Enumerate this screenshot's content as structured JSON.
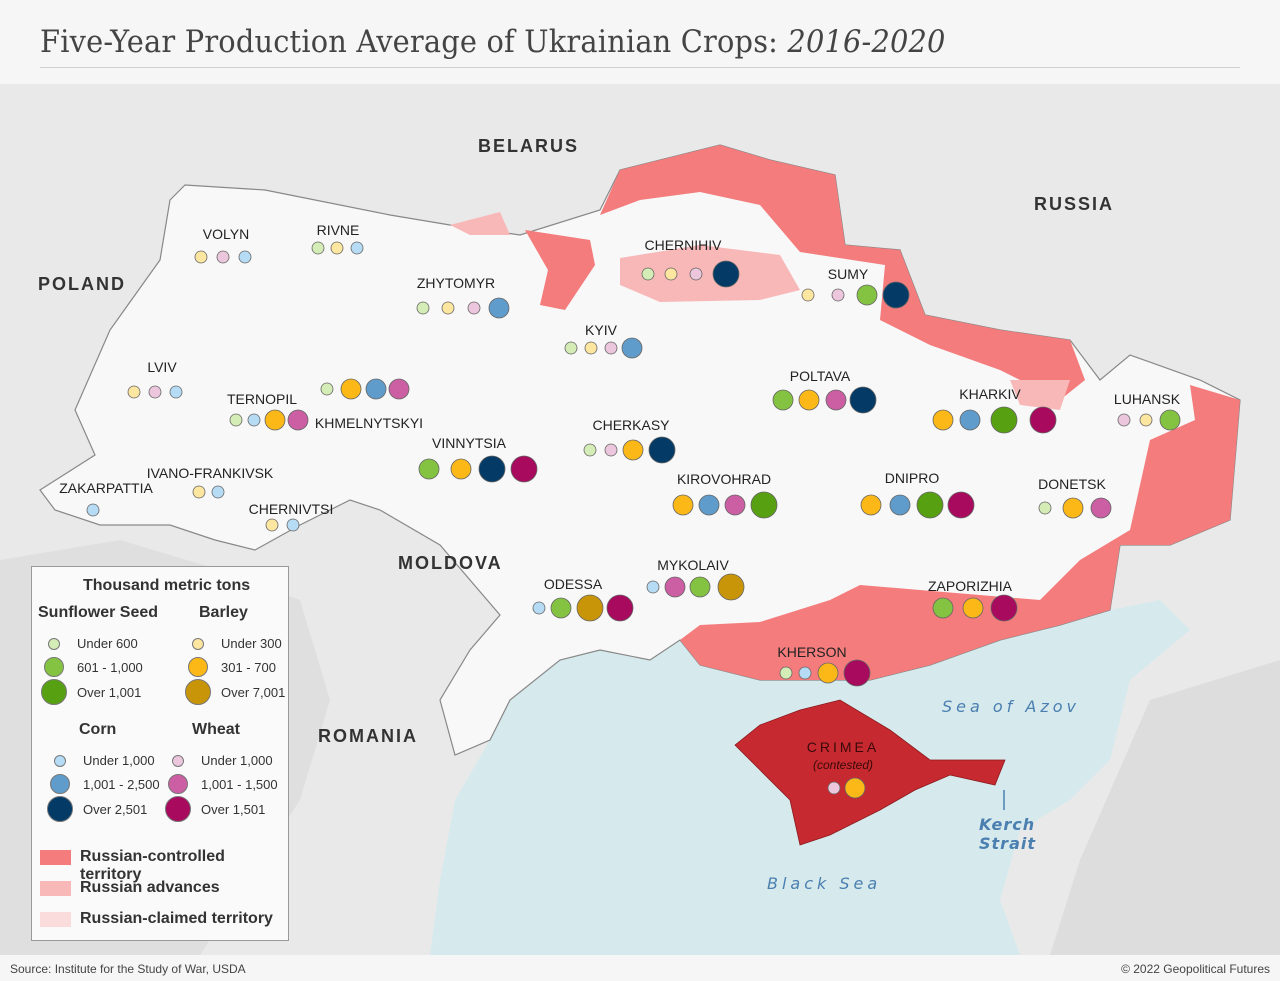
{
  "title": {
    "main": "Five-Year Production Average of Ukrainian Crops: ",
    "years": "2016-2020"
  },
  "countries": [
    "BELARUS",
    "RUSSIA",
    "POLAND",
    "MOLDOVA",
    "ROMANIA"
  ],
  "water": {
    "azov": "Sea of Azov",
    "black_sea": "Black Sea",
    "kerch1": "Kerch",
    "kerch2": "Strait"
  },
  "colors": {
    "controlled": "#f47c7c",
    "advances": "#f8b8b8",
    "claimed": "#fbdcdc",
    "crimea": "#c6292f",
    "sea": "#d6eaed",
    "land": "#f8f8f8",
    "sunflower": [
      "#d4ecb5",
      "#84c341",
      "#57a012"
    ],
    "barley": [
      "#fde6a0",
      "#fbb817",
      "#c99508"
    ],
    "corn": [
      "#b6dcf5",
      "#5f9ccb",
      "#033a66"
    ],
    "wheat": [
      "#ecc6dc",
      "#cc5fa3",
      "#a80a5e"
    ]
  },
  "legend": {
    "title": "Thousand metric tons",
    "crops": {
      "sunflower": {
        "name": "Sunflower Seed",
        "tiers": [
          "Under 600",
          "601 - 1,000",
          "Over 1,001"
        ]
      },
      "barley": {
        "name": "Barley",
        "tiers": [
          "Under 300",
          "301 - 700",
          "Over 7,001"
        ]
      },
      "corn": {
        "name": "Corn",
        "tiers": [
          "Under 1,000",
          "1,001 - 2,500",
          "Over 2,501"
        ]
      },
      "wheat": {
        "name": "Wheat",
        "tiers": [
          "Under 1,000",
          "1,001 - 1,500",
          "Over 1,501"
        ]
      }
    },
    "territory": [
      "Russian-controlled territory",
      "Russian advances",
      "Russian-claimed territory"
    ]
  },
  "regions": [
    {
      "name": "VOLYN",
      "crops": [
        [
          "barley",
          0
        ],
        [
          "wheat",
          0
        ],
        [
          "corn",
          0
        ]
      ]
    },
    {
      "name": "RIVNE",
      "crops": [
        [
          "sunflower",
          0
        ],
        [
          "barley",
          0
        ],
        [
          "corn",
          0
        ]
      ]
    },
    {
      "name": "ZHYTOMYR",
      "crops": [
        [
          "sunflower",
          0
        ],
        [
          "barley",
          0
        ],
        [
          "wheat",
          0
        ],
        [
          "corn",
          1
        ]
      ]
    },
    {
      "name": "LVIV",
      "crops": [
        [
          "barley",
          0
        ],
        [
          "wheat",
          0
        ],
        [
          "corn",
          0
        ]
      ]
    },
    {
      "name": "TERNOPIL",
      "crops": [
        [
          "sunflower",
          0
        ],
        [
          "corn",
          0
        ],
        [
          "barley",
          1
        ],
        [
          "wheat",
          1
        ]
      ]
    },
    {
      "name": "KHMELNYTSKYI",
      "crops": [
        [
          "sunflower",
          0
        ],
        [
          "barley",
          1
        ],
        [
          "corn",
          1
        ],
        [
          "wheat",
          1
        ]
      ]
    },
    {
      "name": "IVANO-FRANKIVSK",
      "crops": [
        [
          "barley",
          0
        ],
        [
          "corn",
          0
        ]
      ]
    },
    {
      "name": "ZAKARPATTIA",
      "crops": [
        [
          "corn",
          0
        ]
      ]
    },
    {
      "name": "CHERNIVTSI",
      "crops": [
        [
          "barley",
          0
        ],
        [
          "corn",
          0
        ]
      ]
    },
    {
      "name": "VINNYTSIA",
      "crops": [
        [
          "sunflower",
          1
        ],
        [
          "barley",
          1
        ],
        [
          "corn",
          2
        ],
        [
          "wheat",
          2
        ]
      ]
    },
    {
      "name": "KYIV",
      "crops": [
        [
          "sunflower",
          0
        ],
        [
          "barley",
          0
        ],
        [
          "wheat",
          0
        ],
        [
          "corn",
          1
        ]
      ]
    },
    {
      "name": "CHERNIHIV",
      "crops": [
        [
          "sunflower",
          0
        ],
        [
          "barley",
          0
        ],
        [
          "wheat",
          0
        ],
        [
          "corn",
          2
        ]
      ]
    },
    {
      "name": "SUMY",
      "crops": [
        [
          "barley",
          0
        ],
        [
          "wheat",
          0
        ],
        [
          "sunflower",
          1
        ],
        [
          "corn",
          2
        ]
      ]
    },
    {
      "name": "POLTAVA",
      "crops": [
        [
          "sunflower",
          1
        ],
        [
          "barley",
          1
        ],
        [
          "wheat",
          1
        ],
        [
          "corn",
          2
        ]
      ]
    },
    {
      "name": "CHERKASY",
      "crops": [
        [
          "sunflower",
          0
        ],
        [
          "wheat",
          0
        ],
        [
          "barley",
          1
        ],
        [
          "corn",
          2
        ]
      ]
    },
    {
      "name": "KHARKIV",
      "crops": [
        [
          "barley",
          1
        ],
        [
          "corn",
          1
        ],
        [
          "sunflower",
          2
        ],
        [
          "wheat",
          2
        ]
      ]
    },
    {
      "name": "LUHANSK",
      "crops": [
        [
          "wheat",
          0
        ],
        [
          "barley",
          0
        ],
        [
          "sunflower",
          1
        ]
      ]
    },
    {
      "name": "KIROVOHRAD",
      "crops": [
        [
          "barley",
          1
        ],
        [
          "corn",
          1
        ],
        [
          "wheat",
          1
        ],
        [
          "sunflower",
          2
        ]
      ]
    },
    {
      "name": "DNIPRO",
      "crops": [
        [
          "barley",
          1
        ],
        [
          "corn",
          1
        ],
        [
          "sunflower",
          2
        ],
        [
          "wheat",
          2
        ]
      ]
    },
    {
      "name": "DONETSK",
      "crops": [
        [
          "sunflower",
          0
        ],
        [
          "barley",
          1
        ],
        [
          "wheat",
          1
        ]
      ]
    },
    {
      "name": "MYKOLAIV",
      "crops": [
        [
          "corn",
          0
        ],
        [
          "wheat",
          1
        ],
        [
          "sunflower",
          1
        ],
        [
          "barley",
          2
        ]
      ]
    },
    {
      "name": "ODESSA",
      "crops": [
        [
          "corn",
          0
        ],
        [
          "sunflower",
          1
        ],
        [
          "barley",
          2
        ],
        [
          "wheat",
          2
        ]
      ]
    },
    {
      "name": "ZAPORIZHIA",
      "crops": [
        [
          "sunflower",
          1
        ],
        [
          "barley",
          1
        ],
        [
          "wheat",
          2
        ]
      ]
    },
    {
      "name": "KHERSON",
      "crops": [
        [
          "sunflower",
          0
        ],
        [
          "corn",
          0
        ],
        [
          "barley",
          1
        ],
        [
          "wheat",
          2
        ]
      ]
    },
    {
      "name": "CRIMEA",
      "note": "(contested)",
      "crops": [
        [
          "wheat",
          0
        ],
        [
          "barley",
          1
        ]
      ]
    }
  ],
  "footer": {
    "source": "Source: Institute for the Study of War, USDA",
    "copyright": "© 2022 Geopolitical Futures"
  }
}
